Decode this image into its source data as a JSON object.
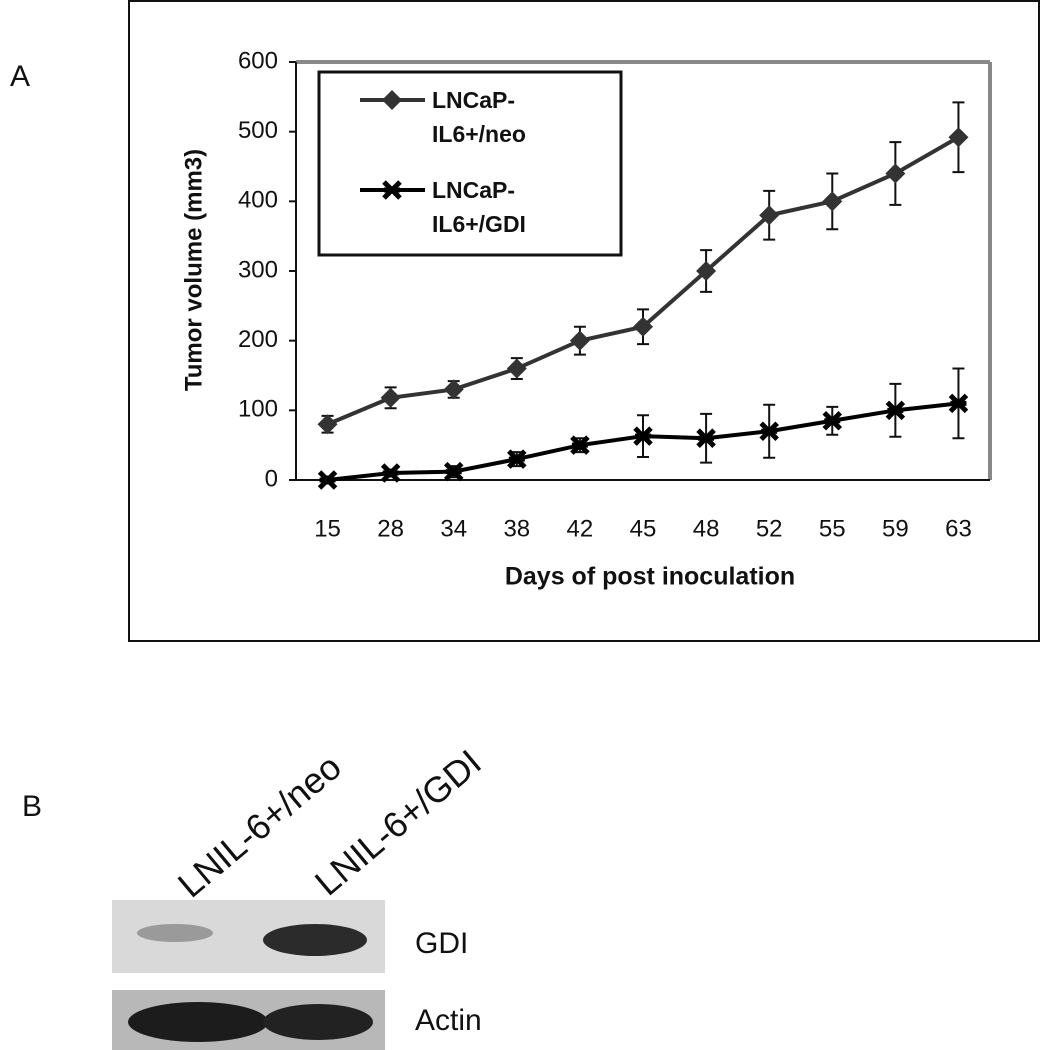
{
  "chart_data": {
    "type": "line",
    "xlabel": "Days of post inoculation",
    "ylabel": "Tumor volume (mm3)",
    "categories": [
      "15",
      "28",
      "34",
      "38",
      "42",
      "45",
      "48",
      "52",
      "55",
      "59",
      "63"
    ],
    "series": [
      {
        "name": "LNCaP-IL6+/neo",
        "color": "#333333",
        "marker": "diamond",
        "values": [
          80,
          118,
          130,
          160,
          200,
          220,
          300,
          380,
          400,
          440,
          492
        ],
        "errors": [
          12,
          15,
          12,
          15,
          20,
          25,
          30,
          35,
          40,
          45,
          50
        ]
      },
      {
        "name": "LNCaP-IL6+/GDI",
        "color": "#000000",
        "marker": "cross",
        "values": [
          0,
          10,
          12,
          30,
          50,
          63,
          60,
          70,
          85,
          100,
          110
        ],
        "errors": [
          5,
          5,
          8,
          10,
          10,
          30,
          35,
          38,
          20,
          38,
          50
        ]
      }
    ],
    "ylim": [
      0,
      600
    ],
    "yticks": [
      0,
      100,
      200,
      300,
      400,
      500,
      600
    ],
    "grid": false
  },
  "panel_labels": [
    "A",
    "B"
  ],
  "blot": {
    "lanes": [
      "LNIL-6+/neo",
      "LNIL-6+/GDI"
    ],
    "bands": [
      "GDI",
      "Actin"
    ]
  }
}
